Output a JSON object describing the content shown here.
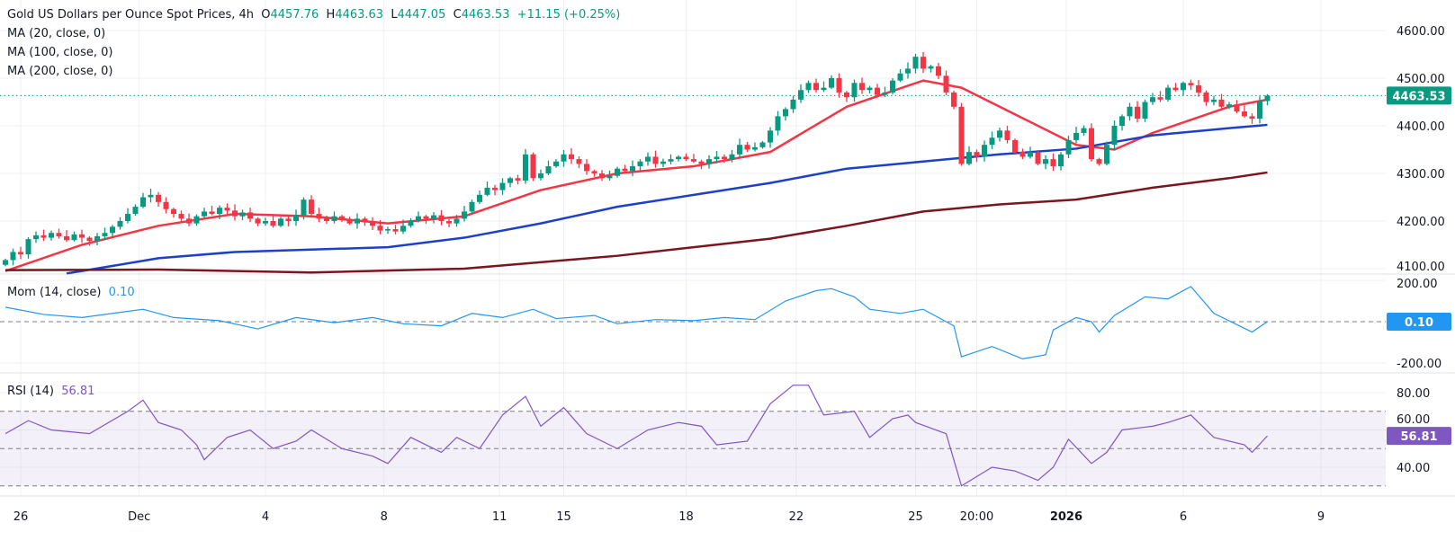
{
  "header": {
    "title": "Gold US Dollars per Ounce Spot Prices, 4h",
    "open_label": "O",
    "open": "4457.76",
    "high_label": "H",
    "high": "4463.63",
    "low_label": "L",
    "low": "4447.05",
    "close_label": "C",
    "close": "4463.53",
    "change": "+11.15 (+0.25%)",
    "ma_labels": [
      "MA (20, close, 0)",
      "MA (100, close, 0)",
      "MA (200, close, 0)"
    ]
  },
  "indicators": {
    "mom_label": "Mom (14, close)",
    "mom_value": "0.10",
    "rsi_label": "RSI (14)",
    "rsi_value": "56.81"
  },
  "colors": {
    "up": "#089981",
    "down": "#f23645",
    "ma20": "#f23645",
    "ma100": "#1e40c8",
    "ma200": "#7b1520",
    "mom": "#2196f3",
    "rsi": "#7e57c2",
    "rsi_band": "#7e57c2"
  },
  "chart_data": [
    {
      "type": "candlestick",
      "title": "Gold US Dollars per Ounce Spot Prices, 4h",
      "ylim": [
        4085,
        4620
      ],
      "yticks": [
        "4600.00",
        "4500.00",
        "4400.00",
        "4300.00",
        "4200.00",
        "4100.00"
      ],
      "ytick_values": [
        4600,
        4500,
        4400,
        4300,
        4200,
        4100
      ],
      "last_price_label": "4463.53",
      "last_price": 4463.53,
      "xticks": [
        {
          "label": "26",
          "bar": 2
        },
        {
          "label": "Dec",
          "bar": 17.5
        },
        {
          "label": "4",
          "bar": 34
        },
        {
          "label": "8",
          "bar": 49.5
        },
        {
          "label": "11",
          "bar": 64.6
        },
        {
          "label": "15",
          "bar": 73
        },
        {
          "label": "18",
          "bar": 89
        },
        {
          "label": "22",
          "bar": 103.4
        },
        {
          "label": "25",
          "bar": 119
        },
        {
          "label": "20:00",
          "bar": 127
        },
        {
          "label": "2026",
          "bar": 138.7
        },
        {
          "label": "6",
          "bar": 154
        },
        {
          "label": "9",
          "bar": 172
        }
      ],
      "closes": [
        4118,
        4135,
        4130,
        4162,
        4170,
        4165,
        4175,
        4168,
        4160,
        4172,
        4165,
        4158,
        4168,
        4175,
        4188,
        4200,
        4215,
        4230,
        4250,
        4255,
        4240,
        4225,
        4215,
        4205,
        4195,
        4210,
        4220,
        4215,
        4228,
        4222,
        4210,
        4218,
        4205,
        4195,
        4200,
        4190,
        4205,
        4200,
        4212,
        4245,
        4215,
        4205,
        4200,
        4210,
        4202,
        4195,
        4205,
        4200,
        4190,
        4180,
        4183,
        4178,
        4190,
        4200,
        4210,
        4205,
        4212,
        4200,
        4195,
        4205,
        4220,
        4240,
        4255,
        4270,
        4265,
        4280,
        4290,
        4285,
        4340,
        4290,
        4300,
        4315,
        4325,
        4340,
        4330,
        4320,
        4305,
        4300,
        4290,
        4295,
        4310,
        4305,
        4315,
        4325,
        4335,
        4320,
        4325,
        4330,
        4335,
        4330,
        4325,
        4320,
        4330,
        4335,
        4330,
        4340,
        4360,
        4350,
        4355,
        4365,
        4390,
        4420,
        4435,
        4455,
        4475,
        4490,
        4475,
        4480,
        4500,
        4470,
        4460,
        4490,
        4475,
        4480,
        4465,
        4470,
        4495,
        4510,
        4520,
        4545,
        4520,
        4525,
        4505,
        4470,
        4440,
        4320,
        4345,
        4335,
        4360,
        4375,
        4390,
        4370,
        4345,
        4335,
        4345,
        4320,
        4330,
        4315,
        4340,
        4370,
        4385,
        4395,
        4330,
        4320,
        4360,
        4400,
        4420,
        4440,
        4415,
        4450,
        4460,
        4455,
        4480,
        4475,
        4490,
        4485,
        4470,
        4450,
        4455,
        4440,
        4445,
        4430,
        4420,
        4415,
        4452,
        4463.53
      ],
      "series": [
        {
          "name": "MA (20, close, 0)",
          "points": [
            [
              0,
              4095
            ],
            [
              10,
              4150
            ],
            [
              20,
              4190
            ],
            [
              30,
              4215
            ],
            [
              40,
              4210
            ],
            [
              50,
              4195
            ],
            [
              60,
              4210
            ],
            [
              70,
              4265
            ],
            [
              80,
              4300
            ],
            [
              90,
              4315
            ],
            [
              100,
              4345
            ],
            [
              110,
              4440
            ],
            [
              120,
              4495
            ],
            [
              125,
              4480
            ],
            [
              130,
              4440
            ],
            [
              140,
              4360
            ],
            [
              145,
              4350
            ],
            [
              150,
              4385
            ],
            [
              160,
              4440
            ],
            [
              165,
              4455
            ]
          ]
        },
        {
          "name": "MA (100, close, 0)",
          "points": [
            [
              8,
              4090
            ],
            [
              10,
              4095
            ],
            [
              20,
              4122
            ],
            [
              30,
              4135
            ],
            [
              40,
              4140
            ],
            [
              50,
              4145
            ],
            [
              60,
              4165
            ],
            [
              70,
              4195
            ],
            [
              80,
              4230
            ],
            [
              90,
              4255
            ],
            [
              100,
              4280
            ],
            [
              110,
              4310
            ],
            [
              120,
              4325
            ],
            [
              130,
              4340
            ],
            [
              140,
              4352
            ],
            [
              150,
              4380
            ],
            [
              160,
              4395
            ],
            [
              165,
              4402
            ]
          ]
        },
        {
          "name": "MA (200, close, 0)",
          "points": [
            [
              0,
              4097
            ],
            [
              20,
              4098
            ],
            [
              40,
              4092
            ],
            [
              60,
              4100
            ],
            [
              80,
              4127
            ],
            [
              100,
              4163
            ],
            [
              110,
              4190
            ],
            [
              120,
              4220
            ],
            [
              130,
              4235
            ],
            [
              140,
              4245
            ],
            [
              150,
              4270
            ],
            [
              160,
              4290
            ],
            [
              165,
              4302
            ]
          ]
        }
      ]
    },
    {
      "type": "line",
      "title": "Mom (14, close)",
      "ylim": [
        -230,
        230
      ],
      "yticks": [
        "200.00",
        "-200.00"
      ],
      "ytick_values": [
        200,
        -200
      ],
      "reference_line": 0,
      "points": [
        [
          0,
          70
        ],
        [
          5,
          35
        ],
        [
          10,
          20
        ],
        [
          15,
          45
        ],
        [
          18,
          60
        ],
        [
          22,
          20
        ],
        [
          28,
          5
        ],
        [
          33,
          -35
        ],
        [
          38,
          20
        ],
        [
          43,
          -5
        ],
        [
          48,
          20
        ],
        [
          52,
          -10
        ],
        [
          57,
          -20
        ],
        [
          61,
          40
        ],
        [
          65,
          20
        ],
        [
          69,
          60
        ],
        [
          72,
          15
        ],
        [
          77,
          30
        ],
        [
          80,
          -10
        ],
        [
          85,
          10
        ],
        [
          90,
          5
        ],
        [
          94,
          20
        ],
        [
          98,
          10
        ],
        [
          102,
          100
        ],
        [
          106,
          150
        ],
        [
          108,
          160
        ],
        [
          111,
          120
        ],
        [
          113,
          60
        ],
        [
          117,
          40
        ],
        [
          120,
          60
        ],
        [
          124,
          -20
        ],
        [
          125,
          -170
        ],
        [
          129,
          -120
        ],
        [
          133,
          -180
        ],
        [
          136,
          -160
        ],
        [
          137,
          -40
        ],
        [
          140,
          20
        ],
        [
          142,
          0
        ],
        [
          143,
          -50
        ],
        [
          145,
          30
        ],
        [
          149,
          120
        ],
        [
          152,
          110
        ],
        [
          155,
          170
        ],
        [
          158,
          40
        ],
        [
          163,
          -50
        ],
        [
          165,
          0.1
        ]
      ]
    },
    {
      "type": "line",
      "title": "RSI (14)",
      "ylim": [
        25,
        90
      ],
      "yticks": [
        "80.00",
        "60.00",
        "40.00"
      ],
      "ytick_values": [
        80,
        60,
        40
      ],
      "band": [
        30,
        70
      ],
      "midline": 50,
      "points": [
        [
          0,
          58
        ],
        [
          3,
          65
        ],
        [
          6,
          60
        ],
        [
          11,
          58
        ],
        [
          16,
          70
        ],
        [
          18,
          76
        ],
        [
          20,
          64
        ],
        [
          23,
          60
        ],
        [
          25,
          52
        ],
        [
          26,
          44
        ],
        [
          29,
          56
        ],
        [
          32,
          60
        ],
        [
          35,
          50
        ],
        [
          38,
          54
        ],
        [
          40,
          60
        ],
        [
          44,
          50
        ],
        [
          48,
          46
        ],
        [
          50,
          42
        ],
        [
          53,
          56
        ],
        [
          57,
          48
        ],
        [
          59,
          56
        ],
        [
          62,
          50
        ],
        [
          65,
          68
        ],
        [
          68,
          78
        ],
        [
          70,
          62
        ],
        [
          73,
          72
        ],
        [
          76,
          58
        ],
        [
          80,
          50
        ],
        [
          84,
          60
        ],
        [
          88,
          64
        ],
        [
          91,
          62
        ],
        [
          93,
          52
        ],
        [
          97,
          54
        ],
        [
          100,
          74
        ],
        [
          103,
          84
        ],
        [
          105,
          84
        ],
        [
          107,
          68
        ],
        [
          111,
          70
        ],
        [
          113,
          56
        ],
        [
          116,
          66
        ],
        [
          118,
          68
        ],
        [
          119,
          64
        ],
        [
          123,
          58
        ],
        [
          125,
          30
        ],
        [
          129,
          40
        ],
        [
          132,
          38
        ],
        [
          135,
          33
        ],
        [
          137,
          40
        ],
        [
          139,
          55
        ],
        [
          142,
          42
        ],
        [
          144,
          48
        ],
        [
          146,
          60
        ],
        [
          150,
          62
        ],
        [
          152,
          64
        ],
        [
          155,
          68
        ],
        [
          158,
          56
        ],
        [
          162,
          52
        ],
        [
          163,
          48
        ],
        [
          165,
          56.81
        ]
      ]
    }
  ]
}
